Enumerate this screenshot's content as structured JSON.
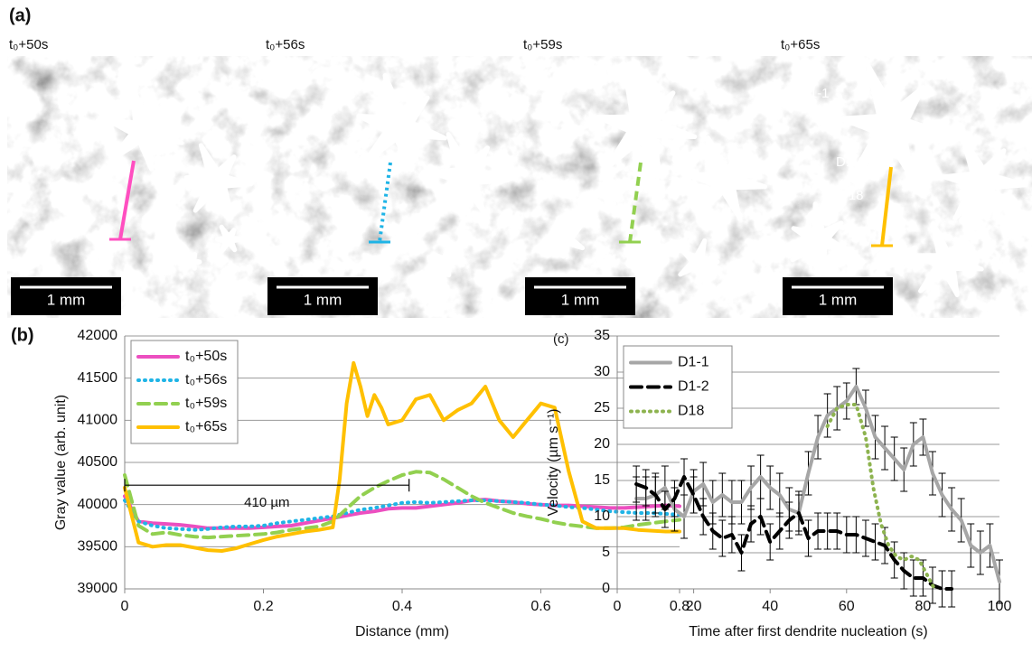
{
  "figure": {
    "panel_a": "(a)",
    "panel_b": "(b)",
    "panel_c": "(c)",
    "frames": [
      "t₀+50s",
      "t₀+56s",
      "t₀+59s",
      "t₀+65s"
    ],
    "scale_bar": "1 mm",
    "dendrite_labels": [
      "D1-1",
      "D1-2",
      "D18"
    ]
  },
  "chart_data": [
    {
      "type": "line",
      "xlabel": "Distance (mm)",
      "ylabel": "Gray value (arb. unit)",
      "xlim": [
        0,
        0.8
      ],
      "xticks": [
        0,
        0.2,
        0.4,
        0.6,
        0.8
      ],
      "ylim": [
        39000,
        42000
      ],
      "yticks": [
        39000,
        39500,
        40000,
        40500,
        41000,
        41500,
        42000
      ],
      "grid": true,
      "legend": "upper-left",
      "annotation": {
        "text": "410 µm",
        "x": [
          0,
          0.41
        ],
        "y": 40230
      },
      "series": [
        {
          "name": "t₀+50s",
          "color": "#ec4fc0",
          "dash": "solid",
          "x": [
            0,
            0.02,
            0.04,
            0.06,
            0.08,
            0.1,
            0.12,
            0.14,
            0.16,
            0.18,
            0.2,
            0.22,
            0.24,
            0.26,
            0.28,
            0.3,
            0.32,
            0.34,
            0.36,
            0.38,
            0.4,
            0.42,
            0.44,
            0.46,
            0.48,
            0.5,
            0.52,
            0.54,
            0.56,
            0.58,
            0.6,
            0.62,
            0.64,
            0.66,
            0.68,
            0.7,
            0.72,
            0.74,
            0.76,
            0.78,
            0.8
          ],
          "values": [
            40100,
            39800,
            39780,
            39770,
            39760,
            39740,
            39720,
            39720,
            39720,
            39720,
            39730,
            39740,
            39750,
            39780,
            39810,
            39840,
            39870,
            39900,
            39920,
            39950,
            39960,
            39960,
            39980,
            40000,
            40020,
            40050,
            40060,
            40040,
            40030,
            40010,
            40000,
            39990,
            39990,
            39980,
            39970,
            39960,
            39960,
            39970,
            39980,
            39990,
            39980
          ]
        },
        {
          "name": "t₀+56s",
          "color": "#1fb4e6",
          "dash": "dotted",
          "x": [
            0,
            0.02,
            0.04,
            0.06,
            0.08,
            0.1,
            0.12,
            0.14,
            0.16,
            0.18,
            0.2,
            0.22,
            0.24,
            0.26,
            0.28,
            0.3,
            0.32,
            0.34,
            0.36,
            0.38,
            0.4,
            0.42,
            0.44,
            0.46,
            0.48,
            0.5,
            0.52,
            0.54,
            0.56,
            0.58,
            0.6,
            0.62,
            0.64,
            0.66,
            0.68,
            0.7,
            0.72,
            0.74,
            0.76,
            0.78,
            0.8
          ],
          "values": [
            40050,
            39800,
            39750,
            39720,
            39710,
            39700,
            39710,
            39730,
            39740,
            39740,
            39750,
            39780,
            39800,
            39820,
            39840,
            39860,
            39900,
            39940,
            39960,
            39990,
            40020,
            40030,
            40020,
            40030,
            40040,
            40050,
            40050,
            40040,
            40030,
            40020,
            40000,
            39990,
            39970,
            39960,
            39940,
            39920,
            39910,
            39900,
            39900,
            39890,
            39880
          ]
        },
        {
          "name": "t₀+59s",
          "color": "#92d050",
          "dash": "dashed",
          "x": [
            0,
            0.02,
            0.04,
            0.06,
            0.08,
            0.1,
            0.12,
            0.14,
            0.16,
            0.18,
            0.2,
            0.22,
            0.24,
            0.26,
            0.28,
            0.3,
            0.32,
            0.34,
            0.36,
            0.38,
            0.4,
            0.42,
            0.44,
            0.46,
            0.48,
            0.5,
            0.52,
            0.54,
            0.56,
            0.58,
            0.6,
            0.62,
            0.64,
            0.66,
            0.68,
            0.7,
            0.72,
            0.74,
            0.76,
            0.78,
            0.8
          ],
          "values": [
            40350,
            39750,
            39650,
            39670,
            39640,
            39620,
            39610,
            39620,
            39630,
            39640,
            39650,
            39670,
            39700,
            39720,
            39740,
            39800,
            39950,
            40100,
            40200,
            40280,
            40350,
            40390,
            40380,
            40300,
            40200,
            40100,
            40020,
            39960,
            39900,
            39860,
            39830,
            39790,
            39760,
            39740,
            39720,
            39720,
            39730,
            39760,
            39780,
            39800,
            39820
          ]
        },
        {
          "name": "t₀+65s",
          "color": "#ffc000",
          "dash": "solid",
          "x": [
            0,
            0.02,
            0.04,
            0.06,
            0.08,
            0.1,
            0.12,
            0.14,
            0.16,
            0.18,
            0.2,
            0.22,
            0.24,
            0.26,
            0.28,
            0.3,
            0.31,
            0.32,
            0.33,
            0.34,
            0.35,
            0.36,
            0.37,
            0.38,
            0.4,
            0.42,
            0.44,
            0.46,
            0.48,
            0.5,
            0.52,
            0.54,
            0.56,
            0.58,
            0.6,
            0.62,
            0.64,
            0.66,
            0.68,
            0.7,
            0.72,
            0.74,
            0.76,
            0.78,
            0.8
          ],
          "values": [
            40200,
            39550,
            39500,
            39520,
            39520,
            39490,
            39460,
            39450,
            39480,
            39530,
            39580,
            39620,
            39650,
            39680,
            39700,
            39730,
            40300,
            41200,
            41680,
            41400,
            41050,
            41300,
            41150,
            40950,
            41000,
            41250,
            41300,
            41000,
            41120,
            41200,
            41400,
            41000,
            40800,
            41000,
            41200,
            41150,
            40400,
            39800,
            39720,
            39720,
            39720,
            39700,
            39690,
            39680,
            39680
          ]
        }
      ]
    },
    {
      "type": "line",
      "xlabel": "Time after first dendrite nucleation (s)",
      "ylabel": "Velocity (µm s⁻¹)",
      "xlim": [
        0,
        100
      ],
      "xticks": [
        0,
        20,
        40,
        60,
        80,
        100
      ],
      "ylim": [
        0,
        35
      ],
      "yticks": [
        0,
        5,
        10,
        15,
        20,
        25,
        30,
        35
      ],
      "grid": true,
      "legend": "upper-left",
      "series": [
        {
          "name": "D1-1",
          "color": "#a6a6a6",
          "dash": "solid",
          "x": [
            5,
            7.5,
            10,
            12.5,
            15,
            17.5,
            20,
            22.5,
            25,
            27.5,
            30,
            32.5,
            35,
            37.5,
            40,
            42.5,
            45,
            47.5,
            50,
            52.5,
            55,
            57.5,
            60,
            62.5,
            65,
            67.5,
            70,
            72.5,
            75,
            77.5,
            80,
            82.5,
            85,
            87.5,
            90,
            92.5,
            95,
            97.5,
            100
          ],
          "values": [
            12.5,
            12.5,
            13,
            14,
            11,
            10,
            13.5,
            14.5,
            12,
            13,
            12,
            12,
            14,
            15.5,
            14,
            13,
            11,
            10.5,
            16,
            21,
            24,
            25,
            26,
            28,
            25,
            21,
            19.5,
            18,
            16.5,
            20,
            21,
            16,
            13,
            11,
            9.5,
            6,
            5,
            6,
            1
          ],
          "errors": [
            3,
            3,
            3,
            3,
            3,
            3,
            3,
            3,
            3,
            3,
            3,
            3,
            3,
            3,
            3,
            3,
            3,
            3,
            3,
            3,
            3,
            3,
            2.5,
            2.5,
            2.5,
            3,
            3,
            3,
            3,
            3,
            2.5,
            3,
            3,
            3,
            3,
            3,
            3,
            3,
            3
          ]
        },
        {
          "name": "D1-2",
          "color": "#000000",
          "dash": "dashed",
          "x": [
            5,
            7.5,
            10,
            12.5,
            15,
            17.5,
            20,
            22.5,
            25,
            27.5,
            30,
            32.5,
            35,
            37.5,
            40,
            42.5,
            45,
            47.5,
            50,
            52.5,
            55,
            57.5,
            60,
            62.5,
            65,
            67.5,
            70,
            72.5,
            75,
            77.5,
            80,
            82.5,
            85,
            87.5
          ],
          "values": [
            14.5,
            14,
            13,
            11,
            12.5,
            15.5,
            13,
            10,
            8,
            7,
            7.5,
            5,
            9,
            10,
            6.5,
            8,
            9.5,
            10.5,
            7,
            8,
            8,
            8,
            7.5,
            7.5,
            7,
            6.5,
            6,
            4,
            2.5,
            1.5,
            1.5,
            0.5,
            0,
            0
          ],
          "errors": [
            2.5,
            2.5,
            2.5,
            2.5,
            2.5,
            2.5,
            2.5,
            2.5,
            2.5,
            2.5,
            2.5,
            2.5,
            2.5,
            2.5,
            2.5,
            2.5,
            2.5,
            2.5,
            2.5,
            2.5,
            2.5,
            2.5,
            2.5,
            2.5,
            2.5,
            2.5,
            2.5,
            2.5,
            2.5,
            2.5,
            2.5,
            2.5,
            2.5,
            2.5
          ]
        },
        {
          "name": "D18",
          "color": "#8db34f",
          "dash": "dotted",
          "x": [
            55,
            57.5,
            60,
            62.5,
            65,
            67,
            69,
            71,
            73,
            75,
            77,
            79,
            81,
            83
          ],
          "values": [
            22.5,
            25,
            25.5,
            25.5,
            21,
            14,
            9,
            6,
            4.5,
            4,
            4.5,
            4,
            2,
            0
          ]
        }
      ]
    }
  ]
}
